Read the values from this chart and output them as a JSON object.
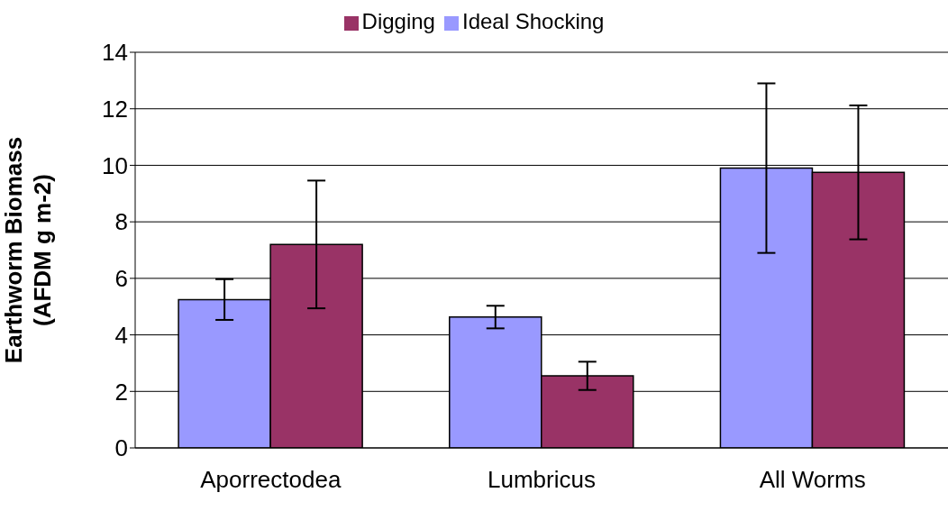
{
  "chart_data": {
    "type": "bar",
    "ylabel": "Earthworm Biomass\n(AFDM g m-2)",
    "categories": [
      "Aporrectodea",
      "Lumbricus",
      "All Worms"
    ],
    "series": [
      {
        "name": "Ideal Shocking",
        "color": "#9999ff",
        "values": [
          5.25,
          4.63,
          9.9
        ],
        "errors": [
          0.72,
          0.4,
          3.0
        ]
      },
      {
        "name": "Digging",
        "color": "#993366",
        "values": [
          7.2,
          2.55,
          9.75
        ],
        "errors": [
          2.26,
          0.5,
          2.37
        ]
      }
    ],
    "ylim": [
      0,
      14
    ],
    "yticks": [
      0,
      2,
      4,
      6,
      8,
      10,
      12,
      14
    ],
    "grid": "y",
    "legend": "top"
  }
}
